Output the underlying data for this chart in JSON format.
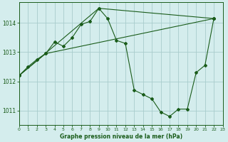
{
  "title": "Graphe pression niveau de la mer (hPa)",
  "xlim": [
    0,
    23
  ],
  "ylim": [
    1010.5,
    1014.7
  ],
  "yticks": [
    1011,
    1012,
    1013,
    1014
  ],
  "xticks": [
    0,
    1,
    2,
    3,
    4,
    5,
    6,
    7,
    8,
    9,
    10,
    11,
    12,
    13,
    14,
    15,
    16,
    17,
    18,
    19,
    20,
    21,
    22,
    23
  ],
  "bg_color": "#d4eded",
  "grid_color": "#a8cccc",
  "line_color": "#1a5c1a",
  "figsize": [
    3.2,
    2.0
  ],
  "dpi": 100,
  "series_main": [
    [
      0,
      1012.2
    ],
    [
      1,
      1012.5
    ],
    [
      2,
      1012.75
    ],
    [
      3,
      1012.95
    ],
    [
      4,
      1013.35
    ],
    [
      5,
      1013.2
    ],
    [
      6,
      1013.5
    ],
    [
      7,
      1013.95
    ],
    [
      8,
      1014.05
    ],
    [
      9,
      1014.5
    ],
    [
      10,
      1014.15
    ],
    [
      11,
      1013.4
    ],
    [
      12,
      1013.3
    ],
    [
      13,
      1011.7
    ],
    [
      14,
      1011.55
    ],
    [
      15,
      1011.4
    ],
    [
      16,
      1010.95
    ],
    [
      17,
      1010.8
    ],
    [
      18,
      1011.05
    ],
    [
      19,
      1011.05
    ],
    [
      20,
      1012.3
    ],
    [
      21,
      1012.55
    ],
    [
      22,
      1014.15
    ]
  ],
  "series_line2": [
    [
      0,
      1012.2
    ],
    [
      3,
      1012.95
    ],
    [
      22,
      1014.15
    ]
  ],
  "series_line3": [
    [
      0,
      1012.2
    ],
    [
      9,
      1014.5
    ],
    [
      22,
      1014.15
    ]
  ]
}
